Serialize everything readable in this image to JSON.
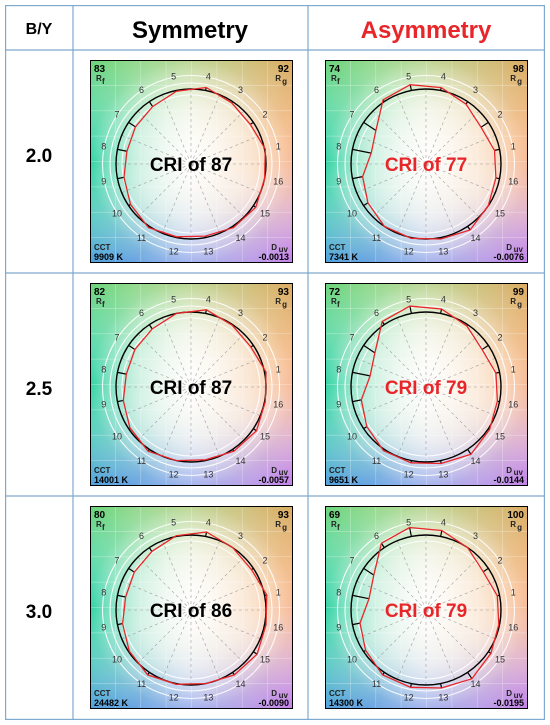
{
  "header": {
    "ratio_label": "B/Y",
    "symmetry_label": "Symmetry",
    "asymmetry_label": "Asymmetry"
  },
  "colors": {
    "border": "#7fa9cf",
    "symmetry_text": "#000000",
    "asymmetry_text": "#e8262a",
    "reference_curve": "#000000",
    "test_curve": "#e8262a"
  },
  "labels": {
    "rf_symbol": "R",
    "rf_subscript": "f",
    "rg_symbol": "R",
    "rg_subscript": "g",
    "cct_label": "CCT",
    "duv_symbol": "D",
    "duv_subscript": "uv",
    "hue_bins": [
      "1",
      "2",
      "3",
      "4",
      "5",
      "6",
      "7",
      "8",
      "9",
      "10",
      "11",
      "12",
      "13",
      "14",
      "15",
      "16"
    ]
  },
  "rows": [
    {
      "ratio": "2.0",
      "symmetry": {
        "rf": "83",
        "rg": "92",
        "cct": "9909 K",
        "duv": "-0.0013",
        "cri": "CRI of 87"
      },
      "asymmetry": {
        "rf": "74",
        "rg": "98",
        "cct": "7341 K",
        "duv": "-0.0076",
        "cri": "CRI of 77"
      }
    },
    {
      "ratio": "2.5",
      "symmetry": {
        "rf": "82",
        "rg": "93",
        "cct": "14001 K",
        "duv": "-0.0057",
        "cri": "CRI of 87"
      },
      "asymmetry": {
        "rf": "72",
        "rg": "99",
        "cct": "9651 K",
        "duv": "-0.0144",
        "cri": "CRI of 79"
      }
    },
    {
      "ratio": "3.0",
      "symmetry": {
        "rf": "80",
        "rg": "93",
        "cct": "24482 K",
        "duv": "-0.0090",
        "cri": "CRI of 86"
      },
      "asymmetry": {
        "rf": "69",
        "rg": "100",
        "cct": "14300 K",
        "duv": "-0.0195",
        "cri": "CRI of 79"
      }
    }
  ]
}
